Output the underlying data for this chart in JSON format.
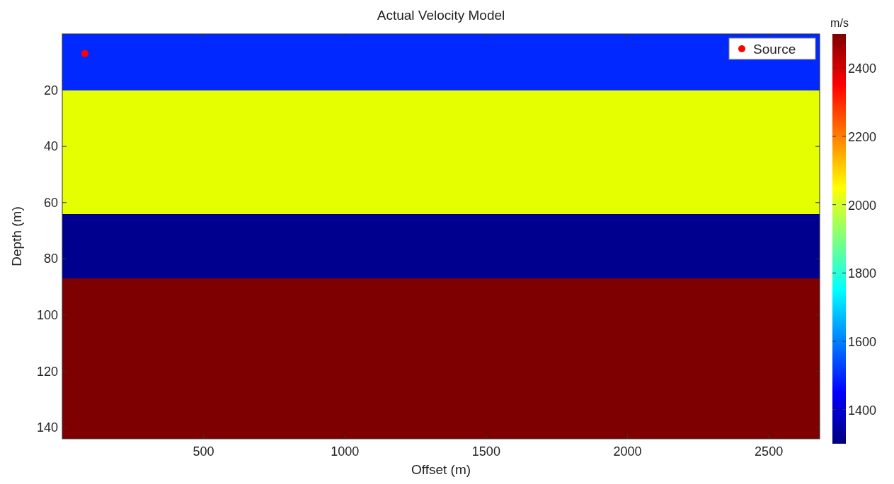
{
  "chart_data": {
    "type": "scatter",
    "title": "Actual Velocity Model",
    "xlabel": "Offset (m)",
    "ylabel": "Depth (m)",
    "clabel": "m/s",
    "xlim": [
      0,
      2680
    ],
    "xticks": [
      500,
      1000,
      1500,
      2000,
      2500
    ],
    "ylim": [
      144,
      0
    ],
    "yticks": [
      20,
      40,
      60,
      80,
      100,
      120,
      140
    ],
    "clim": [
      1300,
      2500
    ],
    "cticks": [
      1400,
      1600,
      1800,
      2000,
      2200,
      2400
    ],
    "bands": [
      {
        "axis": "y",
        "from": 0,
        "to": 20,
        "color": "#0028ff"
      },
      {
        "axis": "y",
        "from": 20,
        "to": 64,
        "color": "#e5ff00"
      },
      {
        "axis": "y",
        "from": 64,
        "to": 87,
        "color": "#00008f"
      },
      {
        "axis": "y",
        "from": 87,
        "to": 144,
        "color": "#7f0000"
      }
    ],
    "series": [
      {
        "name": "Source",
        "x": [
          80
        ],
        "values": [
          7
        ],
        "color": "#ff0000"
      }
    ],
    "legend": "top right",
    "marker": "circle"
  }
}
